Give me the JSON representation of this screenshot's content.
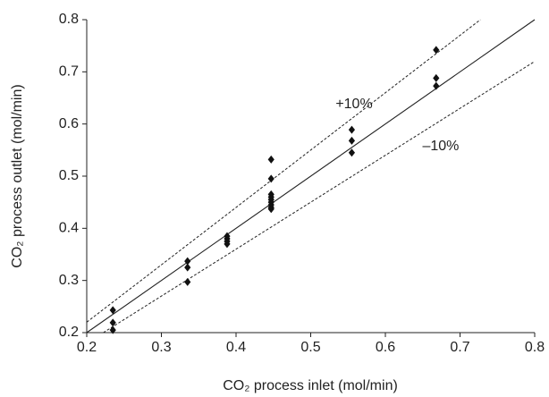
{
  "chart_data": {
    "type": "scatter",
    "x_label": "CO₂ process inlet (mol/min)",
    "y_label": "CO₂ process outlet (mol/min)",
    "xlim": [
      0.2,
      0.8
    ],
    "ylim": [
      0.2,
      0.8
    ],
    "xticks": [
      0.2,
      0.3,
      0.4,
      0.5,
      0.6,
      0.7,
      0.8
    ],
    "yticks": [
      0.2,
      0.3,
      0.4,
      0.5,
      0.6,
      0.7,
      0.8
    ],
    "grid": false,
    "series": [
      {
        "color": "#111111",
        "x": [
          0.235,
          0.235,
          0.235,
          0.335,
          0.335,
          0.335,
          0.388,
          0.388,
          0.388,
          0.388,
          0.447,
          0.447,
          0.447,
          0.447,
          0.447,
          0.447,
          0.447,
          0.447,
          0.447,
          0.555,
          0.555,
          0.555,
          0.668,
          0.668,
          0.668
        ],
        "values": [
          0.243,
          0.219,
          0.205,
          0.337,
          0.325,
          0.297,
          0.385,
          0.38,
          0.375,
          0.37,
          0.532,
          0.495,
          0.465,
          0.46,
          0.455,
          0.45,
          0.445,
          0.44,
          0.437,
          0.589,
          0.568,
          0.545,
          0.742,
          0.688,
          0.673
        ]
      }
    ],
    "lines": [
      {
        "x": [
          0.2,
          0.8
        ],
        "values": [
          0.2,
          0.8
        ],
        "style": "solid",
        "color": "#222222"
      },
      {
        "x": [
          0.2,
          0.7273
        ],
        "values": [
          0.22,
          0.8
        ],
        "style": "dashed",
        "color": "#222222",
        "label": "+10%"
      },
      {
        "x": [
          0.2222,
          0.8
        ],
        "values": [
          0.2,
          0.72
        ],
        "style": "dashed",
        "color": "#222222",
        "label": "–10%"
      }
    ]
  }
}
